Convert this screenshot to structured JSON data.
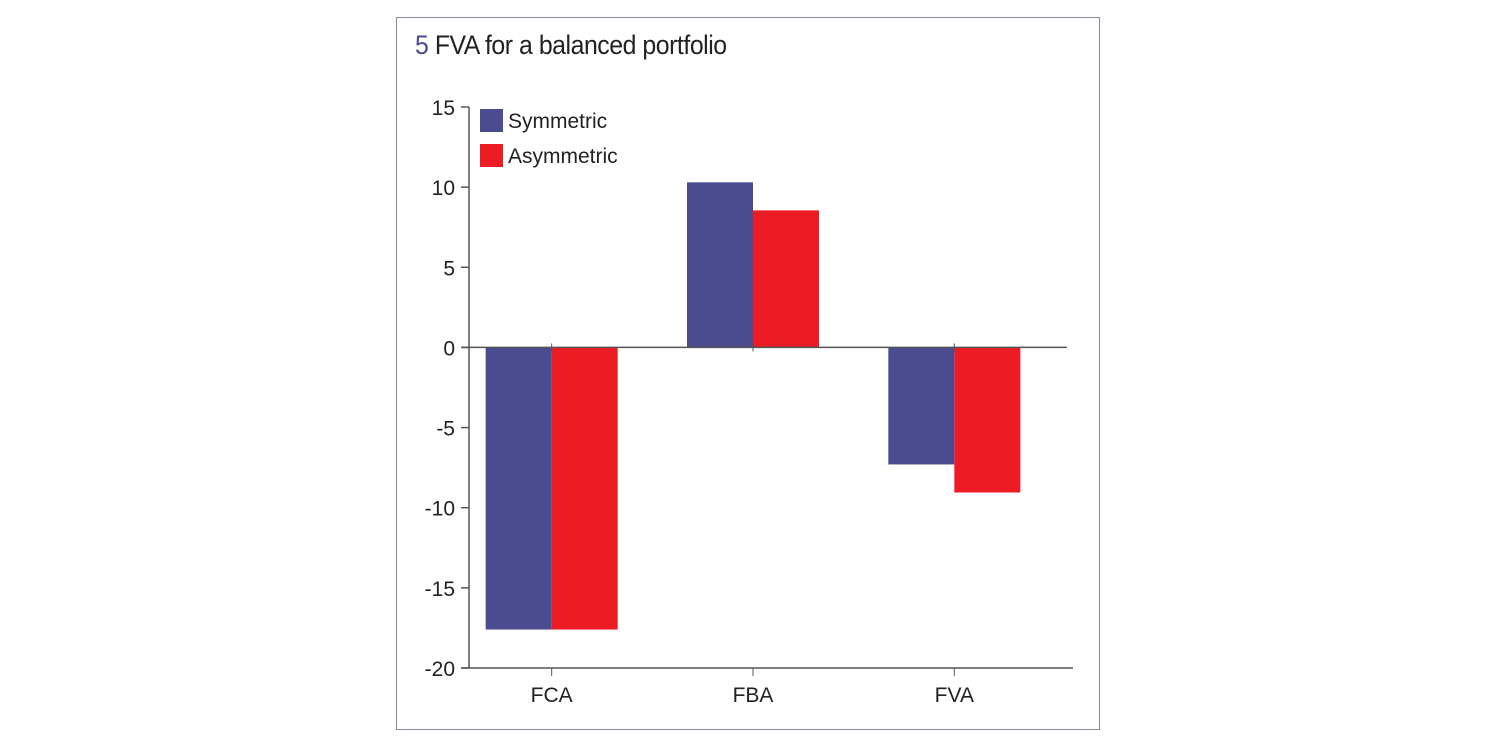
{
  "chart_data": {
    "type": "bar",
    "title_number": "5",
    "title": "FVA for a balanced portfolio",
    "xlabel": "",
    "ylabel": "",
    "categories": [
      "FCA",
      "FBA",
      "FVA"
    ],
    "series": [
      {
        "name": "Symmetric",
        "color": "#4b4b8f",
        "values": [
          -17.6,
          10.3,
          -7.3
        ]
      },
      {
        "name": "Asymmetric",
        "color": "#ed1c24",
        "values": [
          -17.6,
          8.55,
          -9.05
        ]
      }
    ],
    "ylim": [
      -20,
      15
    ],
    "yticks": [
      15,
      10,
      5,
      0,
      -5,
      -10,
      -15,
      -20
    ],
    "grid": false,
    "legend": "top-left"
  }
}
